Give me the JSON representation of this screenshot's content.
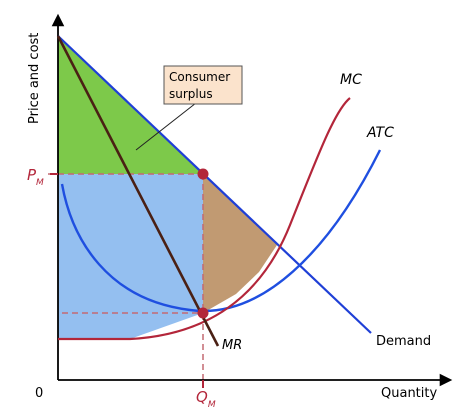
{
  "diagram": {
    "axes": {
      "y_label": "Price and cost",
      "x_label": "Quantity",
      "origin_label": "0"
    },
    "price_marker": {
      "main": "P",
      "sub": "M"
    },
    "quantity_marker": {
      "main": "Q",
      "sub": "M"
    },
    "curves": {
      "mc": "MC",
      "atc": "ATC",
      "mr": "MR",
      "demand": "Demand"
    },
    "callout": {
      "line1": "Consumer",
      "line2": "surplus"
    },
    "colors": {
      "consumer_surplus": "#7dc94a",
      "revenue_area": "#94bff0",
      "deadweight_area": "#c19a72",
      "demand_line": "#1f3fd6",
      "atc_curve": "#1f4fe0",
      "mc_curve": "#b3263a",
      "mr_line": "#4a2014",
      "marker": "#b3263a",
      "callout_fill": "#fbe3cc"
    }
  }
}
